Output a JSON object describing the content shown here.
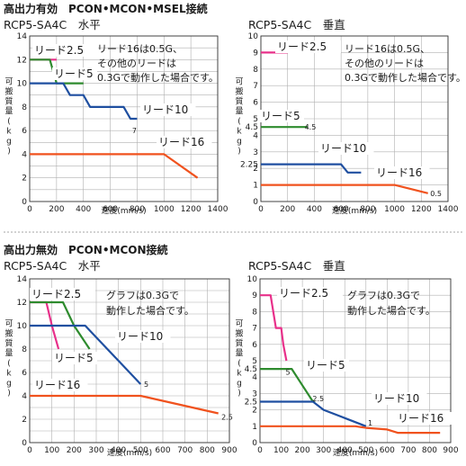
{
  "section_top": "高出力有効　PCON•MCON•MSEL接続",
  "section_bottom": "高出力無効　PCON•MCON接続",
  "colors": {
    "lead_2_5": "#e8308a",
    "lead_5": "#2e8b2e",
    "lead_10": "#1f4fa0",
    "lead_16": "#f0521e",
    "grid": "#b0b0b0",
    "divider": "#888888"
  },
  "chart_data": [
    {
      "id": "c1",
      "type": "line",
      "title": "RCP5-SA4C　水平",
      "ylabel": "可搬質量(kg)",
      "xlabel": "速度(mm/s)",
      "xlim": [
        0,
        1400
      ],
      "ylim": [
        0,
        14
      ],
      "xticks": [
        "0",
        "200",
        "400",
        "600",
        "800",
        "1000",
        "1200",
        "1400"
      ],
      "yticks": [
        "0",
        "2",
        "4",
        "6",
        "8",
        "10",
        "12",
        "14"
      ],
      "ytick_values": [
        0,
        2,
        4,
        6,
        8,
        10,
        12,
        14
      ],
      "note": [
        "リード16は0.5G、",
        "その他のリードは",
        "0.3Gで動作した場合です。"
      ],
      "series": [
        {
          "name": "リード2.5",
          "color_key": "lead_2_5",
          "x": [
            0,
            200
          ],
          "y": [
            12,
            12
          ]
        },
        {
          "name": "リード5",
          "color_key": "lead_5",
          "x": [
            0,
            150,
            200,
            400
          ],
          "y": [
            12,
            12,
            10,
            10
          ]
        },
        {
          "name": "リード10",
          "color_key": "lead_10",
          "x": [
            0,
            250,
            300,
            400,
            450,
            650,
            700,
            750,
            800
          ],
          "y": [
            10,
            10,
            9,
            9,
            8,
            8,
            8,
            7,
            7
          ]
        },
        {
          "name": "リード16",
          "color_key": "lead_16",
          "x": [
            0,
            1000,
            1250
          ],
          "y": [
            4,
            4,
            2
          ]
        }
      ],
      "data_labels": [
        {
          "text": "7",
          "x": 780,
          "y": 6.0
        }
      ]
    },
    {
      "id": "c2",
      "type": "line",
      "title": "RCP5-SA4C　垂直",
      "ylabel": "可搬質量(kg)",
      "xlabel": "速度(mm/s)",
      "xlim": [
        0,
        1400
      ],
      "ylim": [
        0,
        10
      ],
      "xticks": [
        "0",
        "200",
        "400",
        "600",
        "800",
        "1000",
        "1200",
        "1400"
      ],
      "yticks": [
        "0",
        "1",
        "2",
        "2.25",
        "3",
        "4",
        "4.5",
        "5",
        "6",
        "7",
        "8",
        "9",
        "10"
      ],
      "ytick_values": [
        0,
        1,
        2,
        2.25,
        3,
        4,
        4.5,
        5,
        6,
        7,
        8,
        9,
        10
      ],
      "note": [
        "リード16は0.5G、",
        "その他のリードは",
        "0.3Gで動作した場合です。"
      ],
      "series": [
        {
          "name": "リード2.5",
          "color_key": "lead_2_5",
          "x": [
            0,
            200
          ],
          "y": [
            9,
            9
          ]
        },
        {
          "name": "リード5",
          "color_key": "lead_5",
          "x": [
            0,
            350
          ],
          "y": [
            4.5,
            4.5
          ]
        },
        {
          "name": "リード10",
          "color_key": "lead_10",
          "x": [
            0,
            600,
            650,
            750
          ],
          "y": [
            2.25,
            2.25,
            1.75,
            1.75
          ]
        },
        {
          "name": "リード16",
          "color_key": "lead_16",
          "x": [
            0,
            1000,
            1250
          ],
          "y": [
            1,
            1,
            0.5
          ]
        }
      ],
      "data_labels": [
        {
          "text": "4.5",
          "x": 370,
          "y": 4.5
        },
        {
          "text": "0.5",
          "x": 1310,
          "y": 0.5
        }
      ]
    },
    {
      "id": "c3",
      "type": "line",
      "title": "RCP5-SA4C　水平",
      "ylabel": "可搬質量(kg)",
      "xlabel": "速度(mm/s)",
      "xlim": [
        0,
        900
      ],
      "ylim": [
        0,
        14
      ],
      "xticks": [
        "0",
        "100",
        "200",
        "300",
        "400",
        "500",
        "600",
        "700",
        "800",
        "900"
      ],
      "yticks": [
        "0",
        "2",
        "4",
        "6",
        "8",
        "10",
        "12",
        "14"
      ],
      "ytick_values": [
        0,
        2,
        4,
        6,
        8,
        10,
        12,
        14
      ],
      "note": [
        "グラフは0.3Gで",
        "動作した場合です。"
      ],
      "series": [
        {
          "name": "リード2.5",
          "color_key": "lead_2_5",
          "x": [
            0,
            75,
            100,
            130
          ],
          "y": [
            12,
            12,
            10,
            8
          ]
        },
        {
          "name": "リード5",
          "color_key": "lead_5",
          "x": [
            0,
            150,
            200,
            270
          ],
          "y": [
            12,
            12,
            10,
            8
          ]
        },
        {
          "name": "リード10",
          "color_key": "lead_10",
          "x": [
            0,
            250,
            300,
            400,
            450,
            500
          ],
          "y": [
            10,
            10,
            9,
            7,
            6,
            5
          ]
        },
        {
          "name": "リード16",
          "color_key": "lead_16",
          "x": [
            0,
            500,
            850
          ],
          "y": [
            4,
            4,
            2.5
          ]
        }
      ],
      "data_labels": [
        {
          "text": "5",
          "x": 525,
          "y": 5
        },
        {
          "text": "2.5",
          "x": 890,
          "y": 2.2
        }
      ]
    },
    {
      "id": "c4",
      "type": "line",
      "title": "RCP5-SA4C　垂直",
      "ylabel": "可搬質量(kg)",
      "xlabel": "速度(mm/s)",
      "xlim": [
        0,
        900
      ],
      "ylim": [
        0,
        10
      ],
      "xticks": [
        "0",
        "100",
        "200",
        "300",
        "400",
        "500",
        "600",
        "700",
        "800",
        "900"
      ],
      "yticks": [
        "0",
        "1",
        "2",
        "2.5",
        "3",
        "4",
        "4.5",
        "5",
        "6",
        "7",
        "8",
        "9",
        "10"
      ],
      "ytick_values": [
        0,
        1,
        2,
        2.5,
        3,
        4,
        4.5,
        5,
        6,
        7,
        8,
        9,
        10
      ],
      "note": [
        "グラフは0.3Gで",
        "動作した場合です。"
      ],
      "series": [
        {
          "name": "リード2.5",
          "color_key": "lead_2_5",
          "x": [
            0,
            50,
            75,
            100,
            110,
            125
          ],
          "y": [
            9,
            9,
            7,
            7,
            6,
            5
          ]
        },
        {
          "name": "リード5",
          "color_key": "lead_5",
          "x": [
            0,
            150,
            200,
            250,
            260
          ],
          "y": [
            4.5,
            4.5,
            3.5,
            2.5,
            2.5
          ]
        },
        {
          "name": "リード10",
          "color_key": "lead_10",
          "x": [
            0,
            250,
            300,
            400,
            500
          ],
          "y": [
            2.5,
            2.5,
            2,
            1.5,
            1
          ]
        },
        {
          "name": "リード16",
          "color_key": "lead_16",
          "x": [
            0,
            450,
            500,
            600,
            650,
            850
          ],
          "y": [
            1,
            1,
            0.9,
            0.8,
            0.6,
            0.6
          ]
        }
      ],
      "data_labels": [
        {
          "text": "5",
          "x": 132,
          "y": 4.3
        },
        {
          "text": "2.5",
          "x": 275,
          "y": 2.7
        },
        {
          "text": "1",
          "x": 520,
          "y": 1.2
        }
      ]
    }
  ]
}
